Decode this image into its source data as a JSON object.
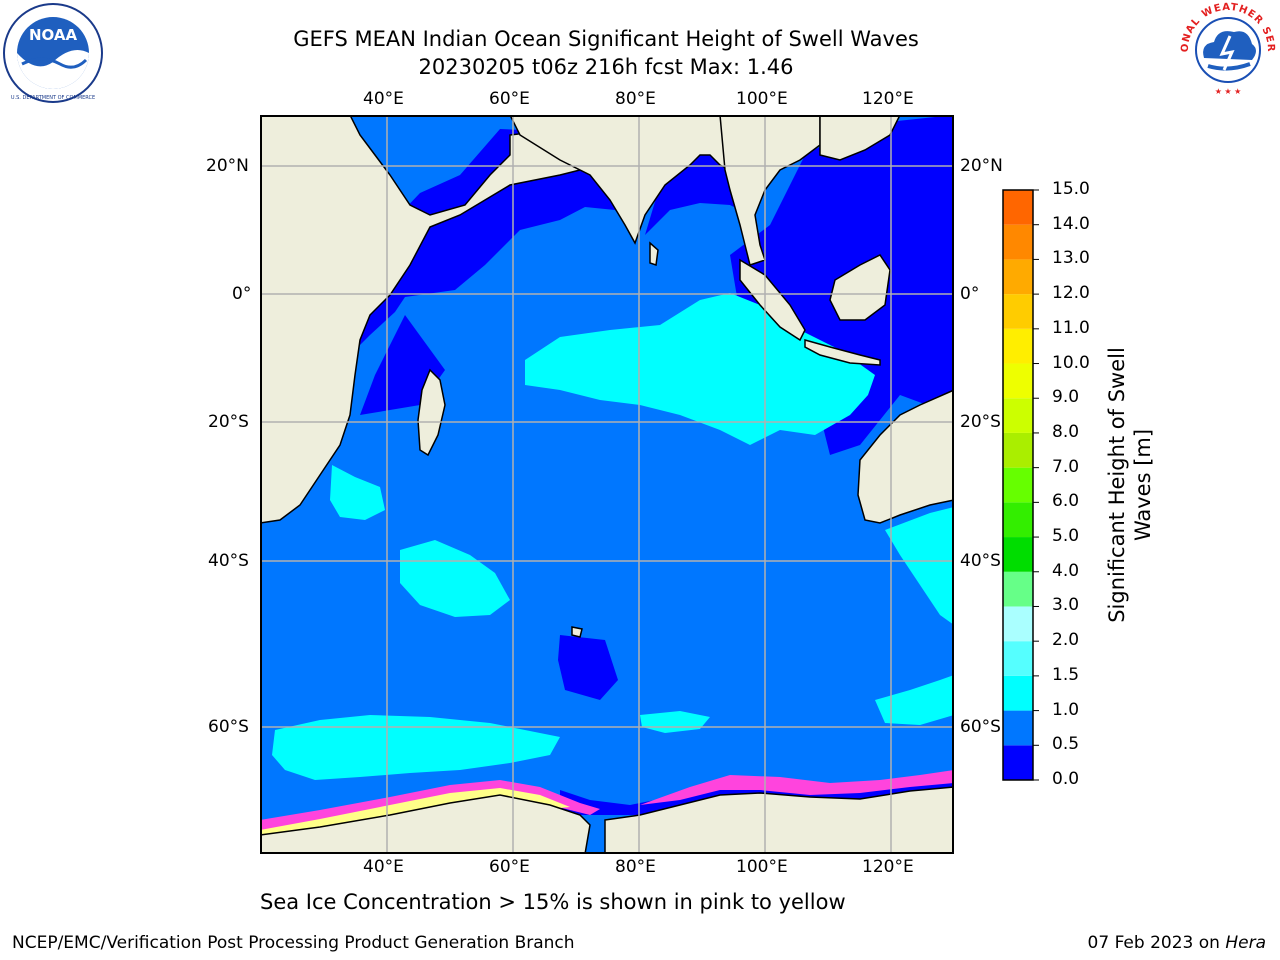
{
  "header": {
    "title_line1": "GEFS MEAN Indian Ocean Significant Height of Swell Waves",
    "title_line2": "20230205 t06z 216h fcst   Max: 1.46"
  },
  "map": {
    "lon_labels": [
      "40°E",
      "60°E",
      "80°E",
      "100°E",
      "120°E"
    ],
    "lat_labels": [
      "20°N",
      "0°",
      "20°S",
      "40°S",
      "60°S"
    ],
    "colors": {
      "land": "#eeeedc",
      "band_0_0_5": "#0000ff",
      "band_0_5_1_0": "#0077ff",
      "band_1_0_1_5": "#00ffff",
      "ice": "#ff44dd",
      "grid": "#b0b0b0"
    }
  },
  "colorbar": {
    "title_line1": "Significant Height of Swell",
    "title_line2": "Waves [m]",
    "ticks": [
      "0.0",
      "0.5",
      "1.0",
      "1.5",
      "2.0",
      "2.5",
      "3.0",
      "3.5",
      "4.0",
      "4.5",
      "5.0",
      "5.5",
      "6.0",
      "6.5",
      "7.0",
      "7.5",
      "8.0",
      "8.5",
      "9.0",
      "9.5",
      "10.0",
      "10.5",
      "11.0",
      "11.5",
      "12.0",
      "12.5",
      "13.0",
      "13.5",
      "14.0",
      "14.5",
      "15.0"
    ],
    "tick_labels": [
      "0.0",
      "0.5",
      "1.0",
      "1.5",
      "2.0",
      "3.0",
      "4.0",
      "5.0",
      "6.0",
      "7.0",
      "8.0",
      "9.0",
      "10.0",
      "11.0",
      "12.0",
      "13.0",
      "14.0",
      "15.0"
    ],
    "colors": [
      "#0000ff",
      "#0077ff",
      "#00ffff",
      "#55ffff",
      "#aaffff",
      "#66ff88",
      "#00dd00",
      "#33ee00",
      "#66ff00",
      "#aaee00",
      "#ccff00",
      "#eeff00",
      "#ffee00",
      "#ffcc00",
      "#ffaa00",
      "#ff8800",
      "#ff6600",
      "#ff3300",
      "#ff0000"
    ]
  },
  "note": "Sea Ice Concentration > 15% is shown in pink to yellow",
  "footer": {
    "left": "NCEP/EMC/Verification Post Processing Product Generation Branch",
    "right_prefix": "07 Feb 2023 on ",
    "right_host": "Hera"
  },
  "logos": {
    "noaa": "NOAA",
    "nws": "NATIONAL WEATHER SERVICE"
  }
}
